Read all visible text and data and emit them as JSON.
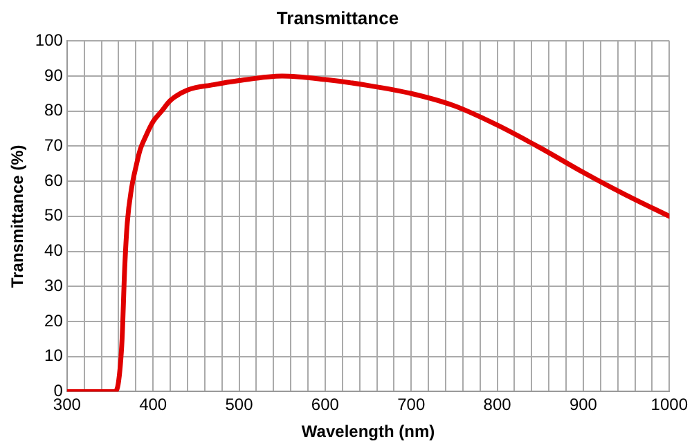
{
  "chart_data": {
    "type": "line",
    "title": "Transmittance",
    "xlabel": "Wavelength (nm)",
    "ylabel": "Transmittance (%)",
    "x": [
      300,
      355,
      360,
      364,
      367,
      370,
      375,
      380,
      385,
      390,
      400,
      410,
      420,
      440,
      470,
      500,
      550,
      600,
      650,
      700,
      750,
      800,
      850,
      900,
      950,
      1000
    ],
    "series": [
      {
        "color": "#e00000",
        "values": [
          0,
          0,
          3,
          15,
          35,
          48,
          58,
          64,
          69,
          72,
          77,
          80,
          83,
          86,
          87.5,
          88.7,
          90,
          89,
          87.3,
          85,
          81.5,
          76,
          69.5,
          62.5,
          56,
          50
        ]
      }
    ],
    "xlim": [
      300,
      1000
    ],
    "xticks": [
      300,
      {
        "value": 320,
        "label": null
      },
      {
        "value": 340,
        "label": null
      },
      {
        "value": 360,
        "label": null
      },
      {
        "value": 380,
        "label": null
      },
      400,
      {
        "value": 420,
        "label": null
      },
      {
        "value": 440,
        "label": null
      },
      {
        "value": 460,
        "label": null
      },
      {
        "value": 480,
        "label": null
      },
      500,
      {
        "value": 520,
        "label": null
      },
      {
        "value": 540,
        "label": null
      },
      {
        "value": 560,
        "label": null
      },
      {
        "value": 580,
        "label": null
      },
      600,
      {
        "value": 620,
        "label": null
      },
      {
        "value": 640,
        "label": null
      },
      {
        "value": 660,
        "label": null
      },
      {
        "value": 680,
        "label": null
      },
      700,
      {
        "value": 720,
        "label": null
      },
      {
        "value": 740,
        "label": null
      },
      {
        "value": 760,
        "label": null
      },
      {
        "value": 780,
        "label": null
      },
      800,
      {
        "value": 820,
        "label": null
      },
      {
        "value": 840,
        "label": null
      },
      {
        "value": 860,
        "label": null
      },
      {
        "value": 880,
        "label": null
      },
      900,
      {
        "value": 920,
        "label": null
      },
      {
        "value": 940,
        "label": null
      },
      {
        "value": 960,
        "label": null
      },
      {
        "value": 980,
        "label": null
      },
      1000
    ],
    "ylim": [
      0,
      100
    ],
    "yticks": [
      0,
      10,
      20,
      30,
      40,
      50,
      60,
      70,
      80,
      90,
      100
    ],
    "grid": true,
    "legend": false,
    "marker": "none",
    "line_style": "solid"
  }
}
